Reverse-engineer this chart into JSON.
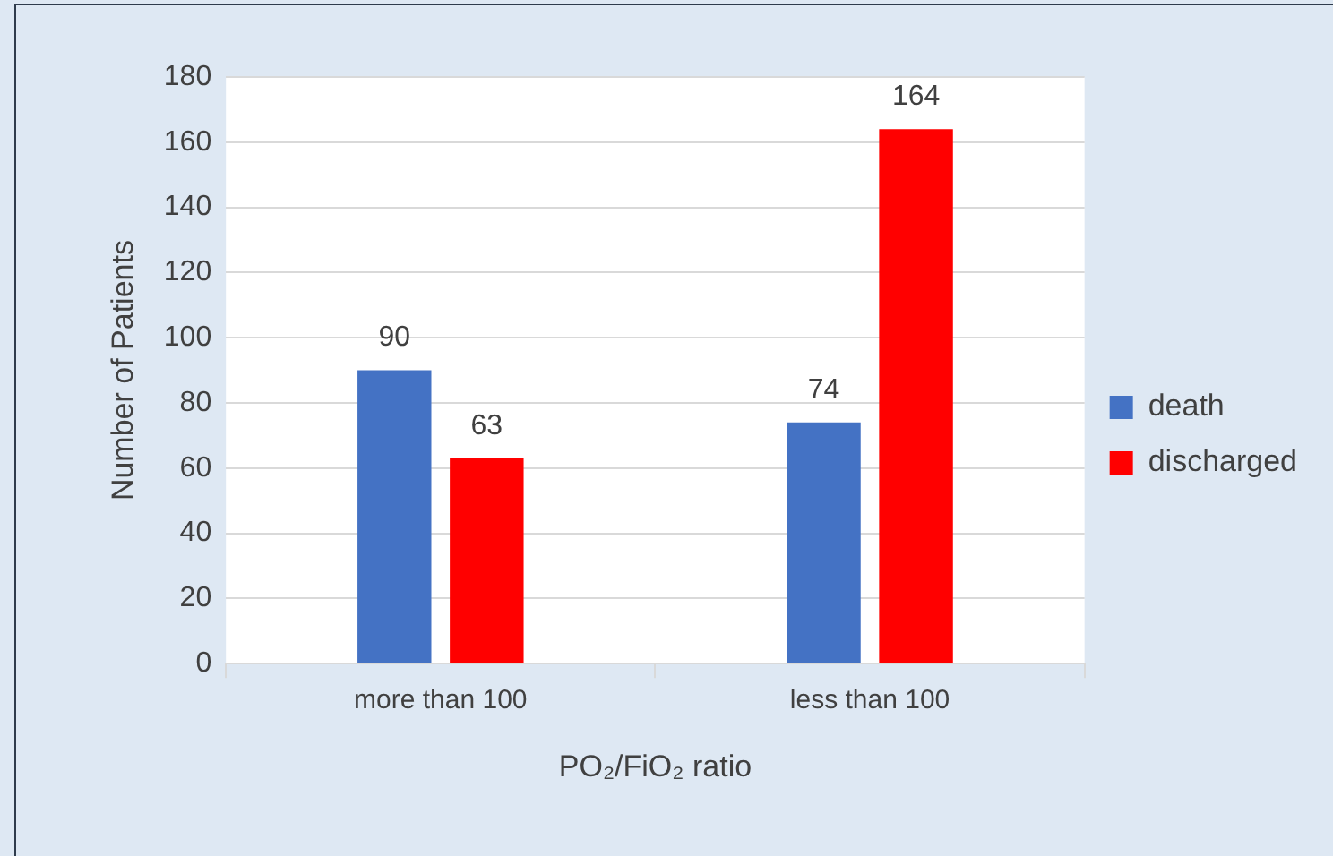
{
  "chart_data": {
    "type": "bar",
    "xlabel": "PO₂/FiO₂ ratio",
    "ylabel": "Number of Patients",
    "categories": [
      "more than 100",
      "less than 100"
    ],
    "series": [
      {
        "name": "death",
        "color": "#4472c4",
        "values": [
          90,
          74
        ]
      },
      {
        "name": "discharged",
        "color": "#ff0000",
        "values": [
          63,
          164
        ]
      }
    ],
    "ylim": [
      0,
      180
    ],
    "yticks": [
      0,
      20,
      40,
      60,
      80,
      100,
      120,
      140,
      160,
      180
    ],
    "grid": "y",
    "legend": "right",
    "data_labels": true
  }
}
